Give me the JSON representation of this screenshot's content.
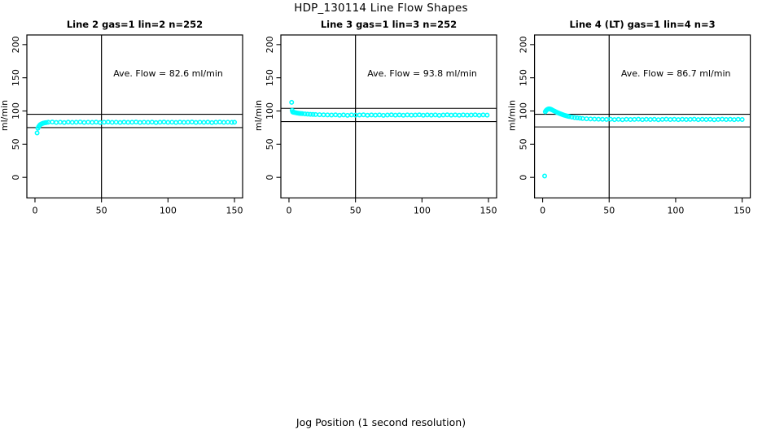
{
  "figure": {
    "title": "HDP_130114  Line Flow Shapes",
    "x_axis_label": "Jog Position (1 second resolution)",
    "background_color": "#ffffff",
    "point_color": "#00ffff",
    "axis_color": "#000000"
  },
  "chart_data": [
    {
      "type": "scatter",
      "title": "Line 2 gas=1 lin=2 n=252",
      "annotation": "Ave. Flow =  82.6  ml/min",
      "ave_flow_ml_min": 82.6,
      "ylabel": "ml/min",
      "x_ticks": [
        0,
        50,
        100,
        150
      ],
      "y_ticks": [
        0,
        50,
        100,
        150,
        200
      ],
      "xlim": [
        -6.1,
        156.1
      ],
      "ylim": [
        -31,
        214.5
      ],
      "v_line_x": 50,
      "h_lines": [
        95,
        75
      ],
      "grid": false,
      "points": [
        [
          1.6,
          67
        ],
        [
          2.2,
          74
        ],
        [
          2.8,
          76.5
        ],
        [
          3.4,
          78.2
        ],
        [
          4,
          79.5
        ],
        [
          4.8,
          80.5
        ],
        [
          5.6,
          81.2
        ],
        [
          6.5,
          81.8
        ],
        [
          7.5,
          82.2
        ],
        [
          8.5,
          82.5
        ],
        [
          10,
          83.0
        ],
        [
          13,
          83.3
        ],
        [
          16,
          82.7
        ],
        [
          19,
          83.1
        ],
        [
          22,
          82.6
        ],
        [
          25,
          83.2
        ],
        [
          28,
          82.8
        ],
        [
          31,
          83.0
        ],
        [
          34,
          83.4
        ],
        [
          37,
          82.7
        ],
        [
          40,
          83.1
        ],
        [
          43,
          82.8
        ],
        [
          46,
          83.2
        ],
        [
          49,
          82.6
        ],
        [
          52,
          83.0
        ],
        [
          55,
          83.3
        ],
        [
          58,
          82.8
        ],
        [
          61,
          83.1
        ],
        [
          64,
          82.7
        ],
        [
          67,
          83.2
        ],
        [
          70,
          82.9
        ],
        [
          73,
          83.0
        ],
        [
          76,
          83.3
        ],
        [
          79,
          82.7
        ],
        [
          82,
          83.1
        ],
        [
          85,
          82.8
        ],
        [
          88,
          83.2
        ],
        [
          91,
          82.6
        ],
        [
          94,
          83.0
        ],
        [
          97,
          83.3
        ],
        [
          100,
          82.8
        ],
        [
          103,
          83.1
        ],
        [
          106,
          82.7
        ],
        [
          109,
          83.2
        ],
        [
          112,
          82.9
        ],
        [
          115,
          83.0
        ],
        [
          118,
          83.3
        ],
        [
          121,
          82.7
        ],
        [
          124,
          83.1
        ],
        [
          127,
          82.8
        ],
        [
          130,
          83.2
        ],
        [
          133,
          82.6
        ],
        [
          136,
          83.0
        ],
        [
          139,
          83.3
        ],
        [
          142,
          82.8
        ],
        [
          145,
          83.1
        ],
        [
          148,
          82.8
        ],
        [
          150,
          83.0
        ]
      ]
    },
    {
      "type": "scatter",
      "title": "Line 3 gas=1 lin=3 n=252",
      "annotation": "Ave. Flow =  93.8  ml/min",
      "ave_flow_ml_min": 93.8,
      "ylabel": "ml/min",
      "x_ticks": [
        0,
        50,
        100,
        150
      ],
      "y_ticks": [
        0,
        50,
        100,
        150,
        200
      ],
      "xlim": [
        -6.1,
        156.1
      ],
      "ylim": [
        -31,
        214.5
      ],
      "v_line_x": 50,
      "h_lines": [
        104,
        84
      ],
      "grid": false,
      "points": [
        [
          2,
          113
        ],
        [
          2.4,
          101
        ],
        [
          2.8,
          98.5
        ],
        [
          3.4,
          98
        ],
        [
          4,
          97.8
        ],
        [
          5,
          97.4
        ],
        [
          6,
          97
        ],
        [
          7,
          96.7
        ],
        [
          8,
          96.4
        ],
        [
          9,
          96.2
        ],
        [
          10,
          96
        ],
        [
          12,
          95.6
        ],
        [
          14,
          95.3
        ],
        [
          16,
          95
        ],
        [
          18,
          94.8
        ],
        [
          20,
          94.6
        ],
        [
          23,
          94.4
        ],
        [
          26,
          94.2
        ],
        [
          29,
          94.1
        ],
        [
          32,
          93.9
        ],
        [
          35,
          94.2
        ],
        [
          38,
          93.6
        ],
        [
          41,
          94.0
        ],
        [
          44,
          93.5
        ],
        [
          47,
          94.1
        ],
        [
          50,
          93.7
        ],
        [
          53,
          93.9
        ],
        [
          56,
          94.2
        ],
        [
          59,
          93.6
        ],
        [
          62,
          94.0
        ],
        [
          65,
          93.7
        ],
        [
          68,
          94.1
        ],
        [
          71,
          93.5
        ],
        [
          74,
          93.9
        ],
        [
          77,
          94.2
        ],
        [
          80,
          93.7
        ],
        [
          83,
          94.0
        ],
        [
          86,
          93.6
        ],
        [
          89,
          94.1
        ],
        [
          92,
          93.8
        ],
        [
          95,
          93.9
        ],
        [
          98,
          94.2
        ],
        [
          101,
          93.6
        ],
        [
          104,
          94.0
        ],
        [
          107,
          93.7
        ],
        [
          110,
          94.1
        ],
        [
          113,
          93.5
        ],
        [
          116,
          93.9
        ],
        [
          119,
          94.2
        ],
        [
          122,
          93.7
        ],
        [
          125,
          94.0
        ],
        [
          128,
          93.6
        ],
        [
          131,
          94.1
        ],
        [
          134,
          93.8
        ],
        [
          137,
          93.9
        ],
        [
          140,
          94.2
        ],
        [
          143,
          93.6
        ],
        [
          146,
          94.0
        ],
        [
          149,
          93.8
        ]
      ]
    },
    {
      "type": "scatter",
      "title": "Line 4 (LT) gas=1 lin=4 n=3",
      "annotation": "Ave. Flow =  86.7  ml/min",
      "ave_flow_ml_min": 86.7,
      "ylabel": "ml/min",
      "x_ticks": [
        0,
        50,
        100,
        150
      ],
      "y_ticks": [
        0,
        50,
        100,
        150,
        200
      ],
      "xlim": [
        -6.1,
        156.1
      ],
      "ylim": [
        -31,
        214.5
      ],
      "v_line_x": 50,
      "h_lines": [
        95,
        76
      ],
      "grid": false,
      "points": [
        [
          1.5,
          2
        ],
        [
          2,
          99
        ],
        [
          2.6,
          100.8
        ],
        [
          3.2,
          101.9
        ],
        [
          3.8,
          102.6
        ],
        [
          4.4,
          103
        ],
        [
          5,
          103.1
        ],
        [
          5.6,
          102.9
        ],
        [
          6.3,
          102.4
        ],
        [
          7,
          101.7
        ],
        [
          8,
          100.7
        ],
        [
          9,
          99.7
        ],
        [
          10,
          98.7
        ],
        [
          11,
          97.7
        ],
        [
          12,
          96.8
        ],
        [
          13,
          96
        ],
        [
          14,
          95.2
        ],
        [
          15,
          94.5
        ],
        [
          16,
          93.8
        ],
        [
          17,
          93.2
        ],
        [
          18,
          92.6
        ],
        [
          19,
          92.1
        ],
        [
          20,
          91.6
        ],
        [
          22,
          90.8
        ],
        [
          24,
          90.1
        ],
        [
          26,
          89.6
        ],
        [
          28,
          89.1
        ],
        [
          30,
          88.7
        ],
        [
          33,
          88.3
        ],
        [
          36,
          88
        ],
        [
          39,
          87.8
        ],
        [
          42,
          87.6
        ],
        [
          45,
          87.5
        ],
        [
          48,
          87.3
        ],
        [
          51,
          87.6
        ],
        [
          54,
          87.0
        ],
        [
          57,
          87.4
        ],
        [
          60,
          86.9
        ],
        [
          63,
          87.5
        ],
        [
          66,
          87.1
        ],
        [
          69,
          87.3
        ],
        [
          72,
          87.6
        ],
        [
          75,
          87.0
        ],
        [
          78,
          87.4
        ],
        [
          81,
          87.1
        ],
        [
          84,
          87.5
        ],
        [
          87,
          86.9
        ],
        [
          90,
          87.3
        ],
        [
          93,
          87.6
        ],
        [
          96,
          87.1
        ],
        [
          99,
          87.4
        ],
        [
          102,
          87.0
        ],
        [
          105,
          87.5
        ],
        [
          108,
          87.2
        ],
        [
          111,
          87.3
        ],
        [
          114,
          87.6
        ],
        [
          117,
          87.0
        ],
        [
          120,
          87.4
        ],
        [
          123,
          87.1
        ],
        [
          126,
          87.5
        ],
        [
          129,
          86.9
        ],
        [
          132,
          87.3
        ],
        [
          135,
          87.6
        ],
        [
          138,
          87.1
        ],
        [
          141,
          87.4
        ],
        [
          144,
          87.0
        ],
        [
          147,
          87.5
        ],
        [
          150,
          87.2
        ]
      ]
    }
  ]
}
